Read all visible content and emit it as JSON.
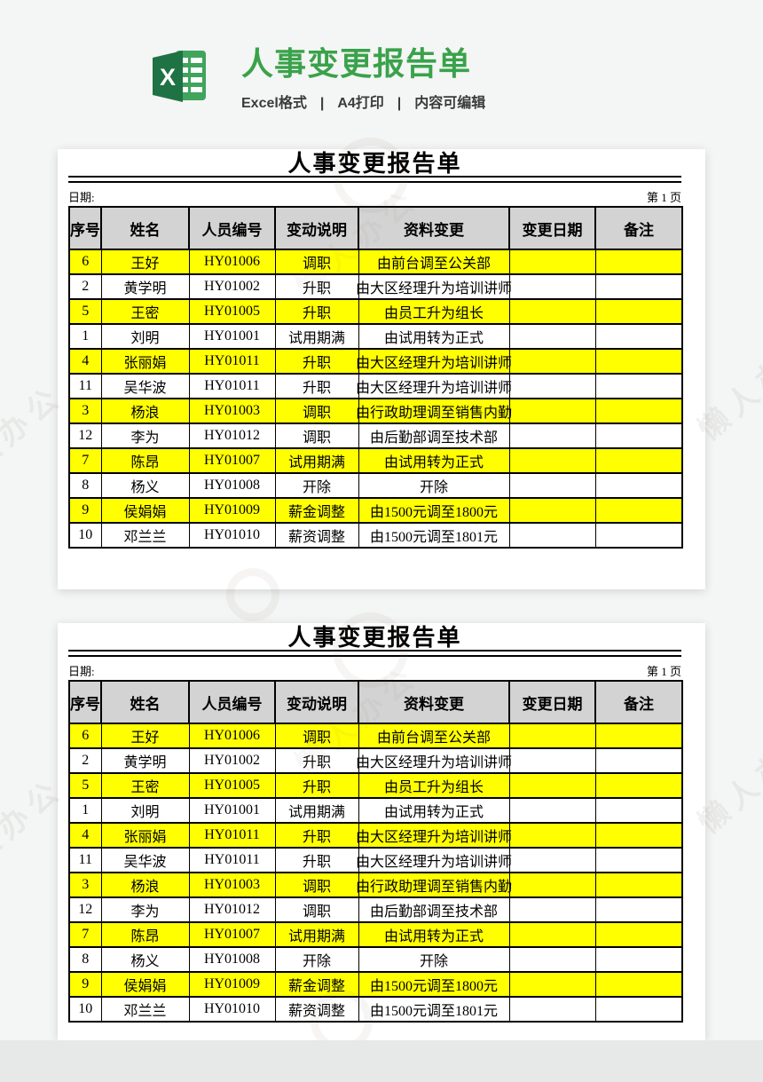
{
  "header": {
    "title": "人事变更报告单",
    "subtitle": {
      "part1": "Excel格式",
      "sep": "|",
      "part2": "A4打印",
      "part3": "内容可编辑"
    },
    "icon_letter": "X",
    "colors": {
      "title_green": "#3aa24a",
      "icon_dark": "#1f7244",
      "icon_light": "#3fa45c"
    }
  },
  "watermark": {
    "text": "懒人办公"
  },
  "report": {
    "title": "人事变更报告单",
    "date_label": "日期:",
    "page_label": "第 1 页",
    "columns": [
      "序号",
      "姓名",
      "人员编号",
      "变动说明",
      "资料变更",
      "变更日期",
      "备注"
    ],
    "highlight_color": "#ffff00",
    "rows": [
      {
        "no": "6",
        "name": "王好",
        "code": "HY01006",
        "change": "调职",
        "detail": "由前台调至公关部",
        "date": "",
        "note": "",
        "highlight": true
      },
      {
        "no": "2",
        "name": "黄学明",
        "code": "HY01002",
        "change": "升职",
        "detail": "由大区经理升为培训讲师",
        "date": "",
        "note": "",
        "highlight": false
      },
      {
        "no": "5",
        "name": "王密",
        "code": "HY01005",
        "change": "升职",
        "detail": "由员工升为组长",
        "date": "",
        "note": "",
        "highlight": true
      },
      {
        "no": "1",
        "name": "刘明",
        "code": "HY01001",
        "change": "试用期满",
        "detail": "由试用转为正式",
        "date": "",
        "note": "",
        "highlight": false
      },
      {
        "no": "4",
        "name": "张丽娟",
        "code": "HY01011",
        "change": "升职",
        "detail": "由大区经理升为培训讲师",
        "date": "",
        "note": "",
        "highlight": true
      },
      {
        "no": "11",
        "name": "吴华波",
        "code": "HY01011",
        "change": "升职",
        "detail": "由大区经理升为培训讲师",
        "date": "",
        "note": "",
        "highlight": false
      },
      {
        "no": "3",
        "name": "杨浪",
        "code": "HY01003",
        "change": "调职",
        "detail": "由行政助理调至销售内勤",
        "date": "",
        "note": "",
        "highlight": true
      },
      {
        "no": "12",
        "name": "李为",
        "code": "HY01012",
        "change": "调职",
        "detail": "由后勤部调至技术部",
        "date": "",
        "note": "",
        "highlight": false
      },
      {
        "no": "7",
        "name": "陈昂",
        "code": "HY01007",
        "change": "试用期满",
        "detail": "由试用转为正式",
        "date": "",
        "note": "",
        "highlight": true
      },
      {
        "no": "8",
        "name": "杨义",
        "code": "HY01008",
        "change": "开除",
        "detail": "开除",
        "date": "",
        "note": "",
        "highlight": false
      },
      {
        "no": "9",
        "name": "侯娟娟",
        "code": "HY01009",
        "change": "薪金调整",
        "detail": "由1500元调至1800元",
        "date": "",
        "note": "",
        "highlight": true
      },
      {
        "no": "10",
        "name": "邓兰兰",
        "code": "HY01010",
        "change": "薪资调整",
        "detail": "由1500元调至1801元",
        "date": "",
        "note": "",
        "highlight": false
      }
    ]
  }
}
